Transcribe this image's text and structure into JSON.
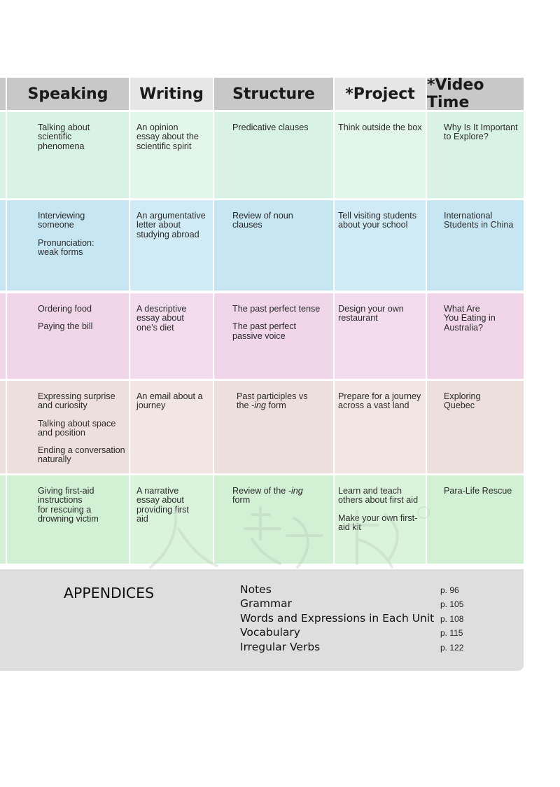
{
  "colors": {
    "header": "#c8c8c8",
    "header_alt": "#e6e6e6",
    "row_green": "#d9f2e6",
    "row_blue": "#c6e6f3",
    "row_pink": "#f0d6e8",
    "row_tan": "#ede0dc",
    "row_lightgreen": "#d2f1d4",
    "appendix_bg": "#dedede"
  },
  "headers": [
    "Speaking",
    "Writing",
    "Structure",
    "*Project",
    "*Video Time"
  ],
  "rows": [
    {
      "speaking": [
        "Talking about\nscientific\nphenomena"
      ],
      "writing": [
        "An opinion\nessay about the\nscientific spirit"
      ],
      "structure": [
        "Predicative clauses"
      ],
      "project": [
        "Think outside the box"
      ],
      "video": [
        "Why Is It Important\nto Explore?"
      ]
    },
    {
      "speaking": [
        "Interviewing\nsomeone",
        "Pronunciation:\nweak forms"
      ],
      "writing": [
        "An argumentative\nletter about\nstudying abroad"
      ],
      "structure": [
        "Review of noun\nclauses"
      ],
      "project": [
        "Tell visiting students\nabout your school"
      ],
      "video": [
        "International\nStudents in China"
      ]
    },
    {
      "speaking": [
        "Ordering food",
        "Paying the bill"
      ],
      "writing": [
        "A descriptive\nessay about\none’s diet"
      ],
      "structure": [
        "The past perfect tense",
        "The past perfect\npassive voice"
      ],
      "project": [
        "Design your own\nrestaurant"
      ],
      "video": [
        "What Are\nYou Eating in\nAustralia?"
      ]
    },
    {
      "speaking": [
        "Expressing surprise\nand curiosity",
        "Talking about space\nand position",
        "Ending a conversation\nnaturally"
      ],
      "writing": [
        "An email about a\njourney"
      ],
      "structure": [
        "Past participles vs\nthe -ing form"
      ],
      "project": [
        "Prepare for a journey\nacross a vast land"
      ],
      "video": [
        "Exploring\nQuebec"
      ]
    },
    {
      "speaking": [
        "Giving first-aid\ninstructions\nfor rescuing a\ndrowning victim"
      ],
      "writing": [
        "A narrative\nessay about\nproviding first\naid"
      ],
      "structure": [
        "Review of the -ing\nform"
      ],
      "project": [
        "Learn and teach\nothers about first aid",
        "Make your own first-\naid kit"
      ],
      "video": [
        "Para-Life Rescue"
      ]
    }
  ],
  "appendices": {
    "title": "APPENDICES",
    "items": [
      {
        "name": "Notes",
        "page": "p. 96"
      },
      {
        "name": "Grammar",
        "page": "p. 105"
      },
      {
        "name": "Words and Expressions in Each Unit",
        "page": "p. 108"
      },
      {
        "name": "Vocabulary",
        "page": "p. 115"
      },
      {
        "name": "Irregular Verbs",
        "page": "p. 122"
      }
    ]
  }
}
